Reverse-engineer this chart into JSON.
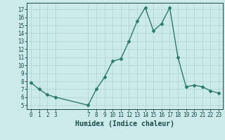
{
  "x": [
    0,
    1,
    2,
    3,
    7,
    8,
    9,
    10,
    11,
    12,
    13,
    14,
    15,
    16,
    17,
    18,
    19,
    20,
    21,
    22,
    23
  ],
  "y": [
    7.8,
    7.0,
    6.3,
    6.0,
    5.0,
    7.0,
    8.5,
    10.5,
    10.8,
    13.0,
    15.5,
    17.2,
    14.3,
    15.2,
    17.2,
    11.0,
    7.3,
    7.5,
    7.3,
    6.8,
    6.5
  ],
  "line_color": "#2d7a6a",
  "marker": "D",
  "marker_size": 2.5,
  "background_color": "#cceaea",
  "grid_color": "#aad4d4",
  "xlabel": "Humidex (Indice chaleur)",
  "xlabel_fontsize": 7,
  "ylim": [
    4.5,
    17.8
  ],
  "xlim": [
    -0.5,
    23.5
  ],
  "yticks": [
    5,
    6,
    7,
    8,
    9,
    10,
    11,
    12,
    13,
    14,
    15,
    16,
    17
  ],
  "xticks": [
    0,
    1,
    2,
    3,
    7,
    8,
    9,
    10,
    11,
    12,
    13,
    14,
    15,
    16,
    17,
    18,
    19,
    20,
    21,
    22,
    23
  ],
  "tick_fontsize": 5.5,
  "line_width": 1.0
}
